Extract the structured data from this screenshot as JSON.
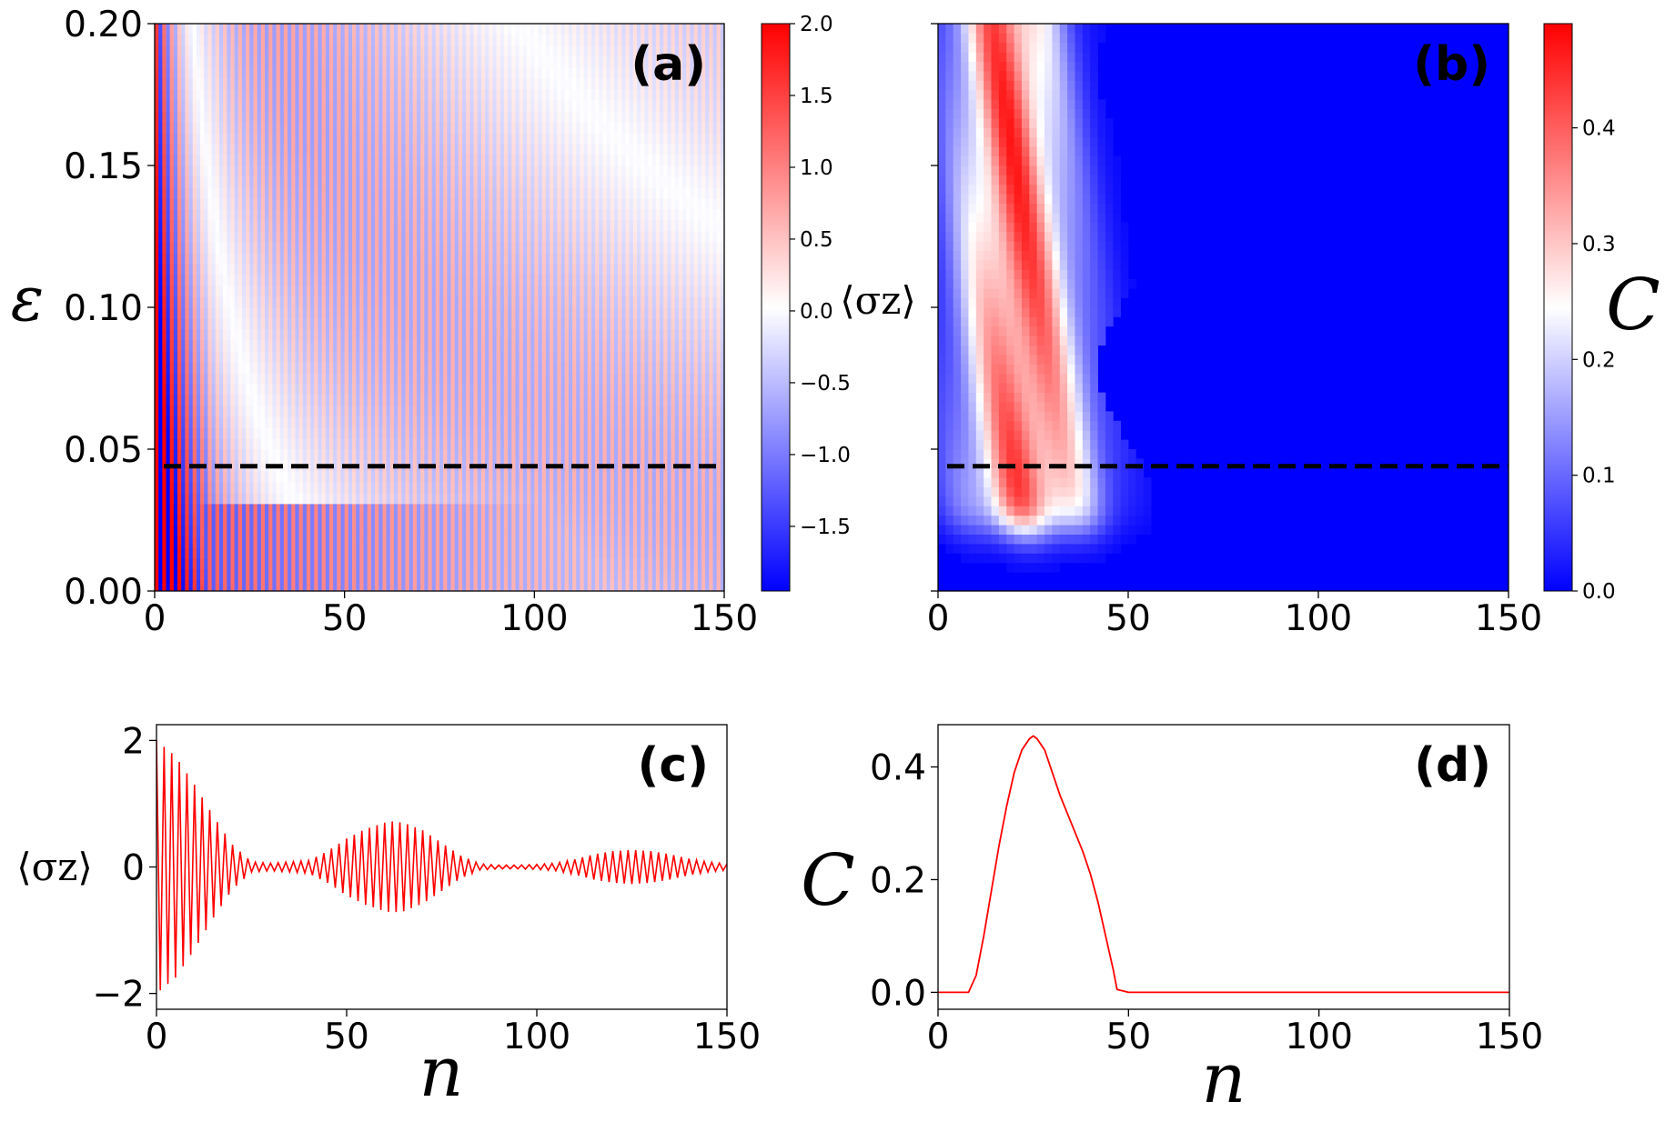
{
  "chart_data": [
    {
      "id": "a",
      "type": "heatmap",
      "panel_label": "(a)",
      "xlim": [
        0,
        150
      ],
      "ylim": [
        0,
        0.2
      ],
      "xticks": [
        "0",
        "50",
        "100",
        "150"
      ],
      "xtick_values": [
        0,
        50,
        100,
        150
      ],
      "yticks": [
        "0.00",
        "0.05",
        "0.10",
        "0.15",
        "0.20"
      ],
      "ytick_values": [
        0,
        0.05,
        0.1,
        0.15,
        0.2
      ],
      "ylabel": "ε",
      "colormap": "bwr",
      "colorbar": {
        "label": "⟨σz⟩",
        "range": [
          -1.95,
          2.0
        ],
        "ticks": [
          "2.0",
          "1.5",
          "1.0",
          "0.5",
          "0.0",
          "−0.5",
          "−1.0",
          "−1.5"
        ],
        "tick_values": [
          2.0,
          1.5,
          1.0,
          0.5,
          0.0,
          -0.5,
          -1.0,
          -1.5
        ]
      },
      "dashed_line_y": 0.044,
      "quantity": "⟨σz⟩(n, ε)"
    },
    {
      "id": "b",
      "type": "heatmap",
      "panel_label": "(b)",
      "xlim": [
        0,
        150
      ],
      "ylim": [
        0,
        0.2
      ],
      "xticks": [
        "0",
        "50",
        "100",
        "150"
      ],
      "xtick_values": [
        0,
        50,
        100,
        150
      ],
      "ytick_values": [
        0,
        0.05,
        0.1,
        0.15,
        0.2
      ],
      "colormap": "bwr",
      "colorbar": {
        "label": "C",
        "range": [
          0.0,
          0.49
        ],
        "ticks": [
          "0.4",
          "0.3",
          "0.2",
          "0.1",
          "0.0"
        ],
        "tick_values": [
          0.4,
          0.3,
          0.2,
          0.1,
          0.0
        ]
      },
      "dashed_line_y": 0.044,
      "quantity": "C(n, ε)",
      "region_nonzero": "roughly n from 2 to 48, ε from 0.015 upward, peak ~0.48 near n≈25"
    },
    {
      "id": "c",
      "type": "line",
      "panel_label": "(c)",
      "xlim": [
        0,
        150
      ],
      "ylim": [
        -2.25,
        2.25
      ],
      "xticks": [
        "0",
        "50",
        "100",
        "150"
      ],
      "xtick_values": [
        0,
        50,
        100,
        150
      ],
      "yticks": [
        "2",
        "0",
        "−2"
      ],
      "ytick_values": [
        2,
        0,
        -2
      ],
      "xlabel": "n",
      "ylabel": "⟨σz⟩",
      "color": "#ff0000",
      "description": "oscillating signal, period 2 in n; envelope: collapse from 2 at n=0 to ~0 by n≈22, revival peak ~0.72 at n≈62, second revival ~0.27 at n≈125",
      "envelope": {
        "n": [
          0,
          5,
          10,
          15,
          20,
          25,
          30,
          35,
          40,
          45,
          50,
          55,
          60,
          62,
          65,
          70,
          75,
          80,
          85,
          90,
          95,
          100,
          105,
          110,
          115,
          120,
          125,
          130,
          135,
          140,
          145,
          150
        ],
        "amplitude": [
          2.0,
          1.75,
          1.3,
          0.8,
          0.35,
          0.08,
          0.06,
          0.08,
          0.1,
          0.25,
          0.45,
          0.6,
          0.7,
          0.72,
          0.7,
          0.58,
          0.38,
          0.18,
          0.05,
          0.03,
          0.03,
          0.04,
          0.06,
          0.12,
          0.2,
          0.25,
          0.27,
          0.25,
          0.2,
          0.13,
          0.08,
          0.05
        ]
      }
    },
    {
      "id": "d",
      "type": "line",
      "panel_label": "(d)",
      "xlim": [
        0,
        150
      ],
      "ylim": [
        -0.03,
        0.475
      ],
      "xticks": [
        "0",
        "50",
        "100",
        "150"
      ],
      "xtick_values": [
        0,
        50,
        100,
        150
      ],
      "yticks": [
        "0.4",
        "0.2",
        "0.0"
      ],
      "ytick_values": [
        0.4,
        0.2,
        0.0
      ],
      "xlabel": "n",
      "ylabel": "C",
      "color": "#ff0000",
      "x": [
        0,
        8,
        10,
        12,
        14,
        16,
        18,
        20,
        22,
        24,
        25,
        26,
        28,
        30,
        32,
        35,
        38,
        40,
        42,
        44,
        46,
        47,
        50,
        100,
        150
      ],
      "y": [
        0.0,
        0.0,
        0.03,
        0.1,
        0.18,
        0.26,
        0.33,
        0.39,
        0.43,
        0.45,
        0.455,
        0.45,
        0.43,
        0.39,
        0.35,
        0.3,
        0.25,
        0.21,
        0.16,
        0.1,
        0.04,
        0.005,
        0.0,
        0.0,
        0.0
      ]
    }
  ]
}
